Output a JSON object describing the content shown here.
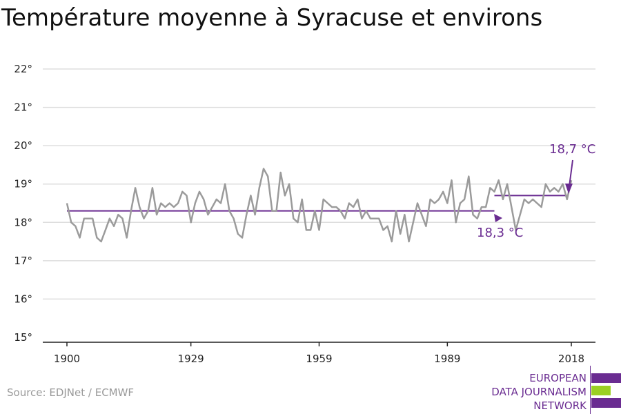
{
  "title": "Température moyenne à Syracuse et environs",
  "source": "Source: EDJNet / ECMWF",
  "logo": {
    "line1": "EUROPEAN",
    "line2": "DATA JOURNALISM",
    "line3": "NETWORK",
    "colors": [
      "#6a2c91",
      "#9bd024",
      "#6a2c91"
    ]
  },
  "colors": {
    "series": "#9b9b9b",
    "mean": "#6a2c91",
    "grid": "#dddddd",
    "axis": "#222222"
  },
  "chart_data": {
    "type": "line",
    "title": "Température moyenne à Syracuse et environs",
    "xlabel": "",
    "ylabel": "",
    "xlim": [
      1900,
      2018
    ],
    "ylim": [
      15,
      22
    ],
    "x_ticks": [
      1900,
      1929,
      1959,
      1989,
      2018
    ],
    "x_tick_labels": [
      "1900",
      "1929",
      "1959",
      "1989",
      "2018"
    ],
    "y_ticks": [
      15,
      16,
      17,
      18,
      19,
      20,
      21,
      22
    ],
    "y_tick_labels": [
      "15°",
      "16°",
      "17°",
      "18°",
      "19°",
      "20°",
      "21°",
      "22°"
    ],
    "grid": true,
    "series": [
      {
        "x": [
          1900,
          1901,
          1902,
          1903,
          1904,
          1905,
          1906,
          1907,
          1908,
          1909,
          1910,
          1911,
          1912,
          1913,
          1914,
          1915,
          1916,
          1917,
          1918,
          1919,
          1920,
          1921,
          1922,
          1923,
          1924,
          1925,
          1926,
          1927,
          1928,
          1929,
          1930,
          1931,
          1932,
          1933,
          1934,
          1935,
          1936,
          1937,
          1938,
          1939,
          1940,
          1941,
          1942,
          1943,
          1944,
          1945,
          1946,
          1947,
          1948,
          1949,
          1950,
          1951,
          1952,
          1953,
          1954,
          1955,
          1956,
          1957,
          1958,
          1959,
          1960,
          1961,
          1962,
          1963,
          1964,
          1965,
          1966,
          1967,
          1968,
          1969,
          1970,
          1971,
          1972,
          1973,
          1974,
          1975,
          1976,
          1977,
          1978,
          1979,
          1980,
          1981,
          1982,
          1983,
          1984,
          1985,
          1986,
          1987,
          1988,
          1989,
          1990,
          1991,
          1992,
          1993,
          1994,
          1995,
          1996,
          1997,
          1998,
          1999,
          2000,
          2001,
          2002,
          2003,
          2004,
          2005,
          2006,
          2007,
          2008,
          2009,
          2010,
          2011,
          2012,
          2013,
          2014,
          2015,
          2016,
          2017,
          2018
        ],
        "values": [
          18.5,
          18.0,
          17.9,
          17.6,
          18.1,
          18.1,
          18.1,
          17.6,
          17.5,
          17.8,
          18.1,
          17.9,
          18.2,
          18.1,
          17.6,
          18.3,
          18.9,
          18.4,
          18.1,
          18.3,
          18.9,
          18.2,
          18.5,
          18.4,
          18.5,
          18.4,
          18.5,
          18.8,
          18.7,
          18.0,
          18.5,
          18.8,
          18.6,
          18.2,
          18.4,
          18.6,
          18.5,
          19.0,
          18.3,
          18.1,
          17.7,
          17.6,
          18.2,
          18.7,
          18.2,
          18.9,
          19.4,
          19.2,
          18.3,
          18.3,
          19.3,
          18.7,
          19.0,
          18.1,
          18.0,
          18.6,
          17.8,
          17.8,
          18.3,
          17.8,
          18.6,
          18.5,
          18.4,
          18.4,
          18.3,
          18.1,
          18.5,
          18.4,
          18.6,
          18.1,
          18.3,
          18.1,
          18.1,
          18.1,
          17.8,
          17.9,
          17.5,
          18.3,
          17.7,
          18.2,
          17.5,
          18.0,
          18.5,
          18.2,
          17.9,
          18.6,
          18.5,
          18.6,
          18.8,
          18.5,
          19.1,
          18.0,
          18.5,
          18.6,
          19.2,
          18.2,
          18.1,
          18.4,
          18.4,
          18.9,
          18.8,
          19.1,
          18.6,
          19.0,
          18.4,
          17.8,
          18.2,
          18.6,
          18.5,
          18.6,
          18.5,
          18.4,
          19.0,
          18.8,
          18.9,
          18.8,
          19.0,
          18.6,
          19.1
        ]
      }
    ],
    "annotations": [
      {
        "label": "18,3 °C",
        "value": 18.3,
        "x_start": 1900,
        "x_end": 2000
      },
      {
        "label": "18,7 °C",
        "value": 18.7,
        "x_start": 2000,
        "x_end": 2017
      }
    ]
  }
}
